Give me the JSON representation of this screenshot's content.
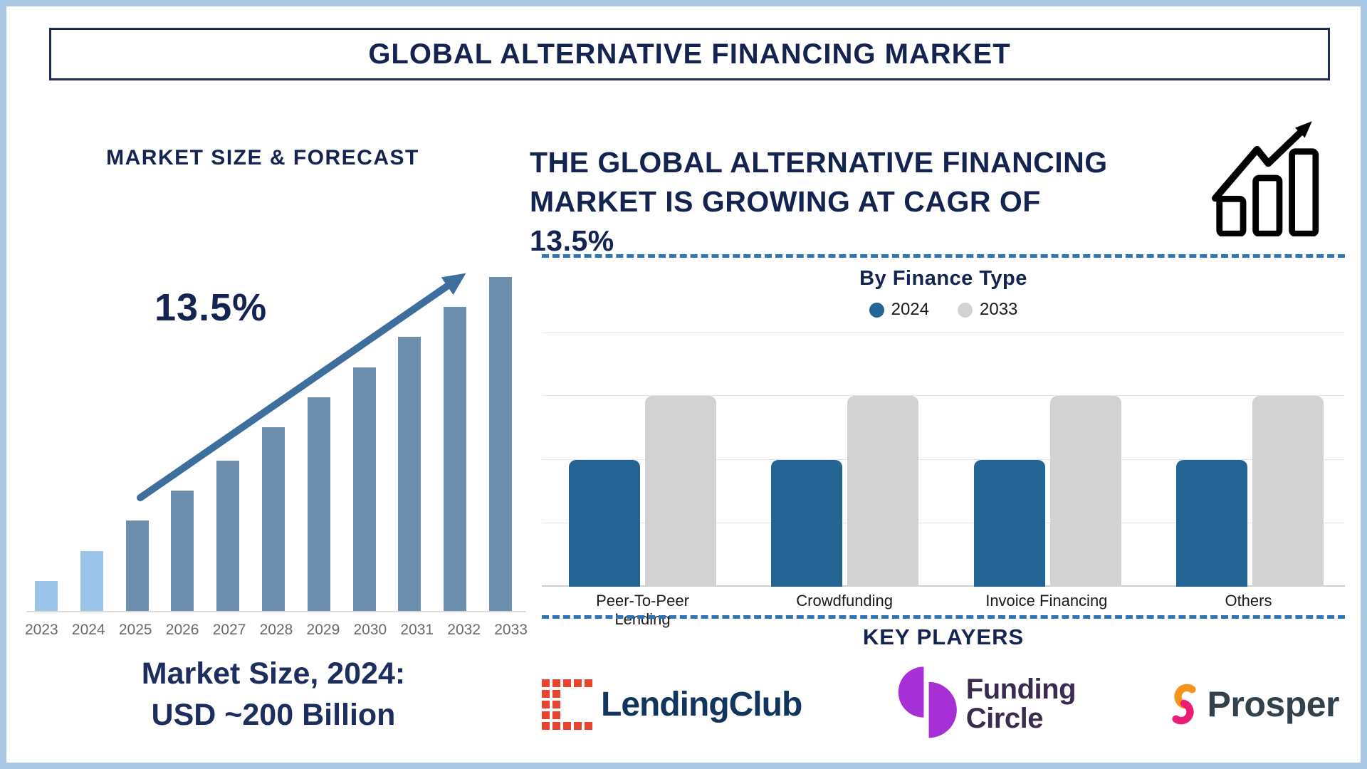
{
  "page": {
    "title": "GLOBAL ALTERNATIVE FINANCING MARKET"
  },
  "left_section": {
    "heading": "MARKET SIZE & FORECAST",
    "cagr_label": "13.5%",
    "market_size_line1": "Market Size, 2024:",
    "market_size_line2": "USD ~200 Billion"
  },
  "right_section": {
    "headline_line1": "THE GLOBAL ALTERNATIVE FINANCING",
    "headline_line2": "MARKET IS GROWING AT CAGR OF 13.5%",
    "growth_icon": "growth-trend-bars-arrow-icon",
    "key_players": {
      "heading": "KEY PLAYERS"
    },
    "logos": {
      "lendingclub": {
        "text": "LendingClub",
        "icon": "lendingclub-dot-grid-icon",
        "icon_color": "#e8442e",
        "text_color": "#12355e"
      },
      "fundingcircle": {
        "line1": "Funding",
        "line2": "Circle",
        "icon": "funding-circle-split-disc-icon",
        "icon_color": "#a62fd6",
        "text_color": "#3a2b4f"
      },
      "prosper": {
        "text": "Prosper",
        "icon": "prosper-swoosh-icon",
        "icon_colors": [
          "#f7941e",
          "#ea1d76"
        ],
        "text_color": "#33414b"
      }
    }
  },
  "colors": {
    "frame_border": "#a9c6e3",
    "navy_text": "#14234f",
    "dashed_divider": "#2e75b6",
    "left_arrow": "#3d6e9e"
  },
  "chart_data": [
    {
      "type": "bar",
      "title": "MARKET SIZE & FORECAST",
      "categories": [
        "2023",
        "2024",
        "2025",
        "2026",
        "2027",
        "2028",
        "2029",
        "2030",
        "2031",
        "2032",
        "2033"
      ],
      "values": [
        1,
        2,
        3,
        4,
        5,
        6,
        7,
        8,
        9,
        10,
        11
      ],
      "value_note": "relative bar heights; no y-axis labels shown, bars grow linearly from 2023 to 2033",
      "annotation": "13.5%",
      "caption": "Market Size, 2024: USD ~200 Billion",
      "xlabel": "",
      "ylabel": "",
      "grid": false,
      "history_count": 2,
      "history_color": "#9cc3e8",
      "forecast_color": "#6e8ead",
      "trend_arrow": true
    },
    {
      "type": "bar",
      "title": "By Finance Type",
      "categories": [
        "Peer-To-Peer Lending",
        "Crowdfunding",
        "Invoice Financing",
        "Others"
      ],
      "series": [
        {
          "name": "2024",
          "color": "#236495",
          "values": [
            2,
            2,
            2,
            2
          ]
        },
        {
          "name": "2033",
          "color": "#d2d2d2",
          "values": [
            3,
            3,
            3,
            3
          ]
        }
      ],
      "value_note": "relative heights read from gridlines; 2024 bars reach 2 of 4 gridline units, 2033 bars reach 3 of 4",
      "ylim": [
        0,
        4
      ],
      "grid": true,
      "legend_position": "top",
      "xlabel": "",
      "ylabel": ""
    }
  ]
}
